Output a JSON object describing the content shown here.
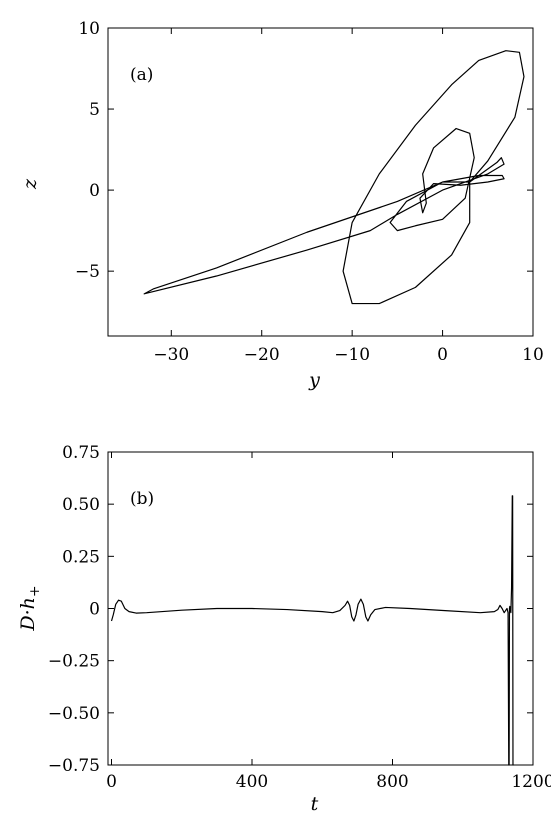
{
  "chart_data": [
    {
      "type": "line",
      "panel_label": "(a)",
      "xlabel": "y",
      "ylabel": "z",
      "xlim": [
        -37,
        10
      ],
      "ylim": [
        -9,
        10
      ],
      "xticks": [
        -30,
        -20,
        -10,
        0,
        10
      ],
      "xtick_labels": [
        "−30",
        "−20",
        "−10",
        "0",
        "10"
      ],
      "yticks": [
        -5,
        0,
        5,
        10
      ],
      "ytick_labels": [
        "−5",
        "0",
        "5",
        "10"
      ],
      "grid": false,
      "series": [
        {
          "points": [
            [
              3,
              0.5
            ],
            [
              6,
              1.7
            ],
            [
              6.5,
              2.0
            ],
            [
              6.8,
              1.6
            ],
            [
              5,
              1.0
            ],
            [
              0,
              0.0
            ],
            [
              -5,
              -1.5
            ],
            [
              -8,
              -2.5
            ],
            [
              -15,
              -3.7
            ],
            [
              -25,
              -5.3
            ],
            [
              -33,
              -6.4
            ],
            [
              -32,
              -6.1
            ],
            [
              -25,
              -4.8
            ],
            [
              -15,
              -2.6
            ],
            [
              -5,
              -0.7
            ],
            [
              0,
              0.5
            ],
            [
              4,
              0.9
            ],
            [
              6.6,
              0.9
            ],
            [
              6.8,
              0.7
            ],
            [
              5,
              0.5
            ],
            [
              2,
              0.3
            ],
            [
              -1,
              0.4
            ],
            [
              -2.5,
              -0.5
            ],
            [
              -2.2,
              -1.4
            ],
            [
              -1.8,
              -0.8
            ],
            [
              -2.2,
              1.0
            ],
            [
              -1,
              2.6
            ],
            [
              1.5,
              3.8
            ],
            [
              3,
              3.5
            ],
            [
              3.5,
              2.0
            ],
            [
              2.5,
              -0.5
            ],
            [
              0,
              -1.8
            ],
            [
              -3,
              -2.2
            ],
            [
              -5,
              -2.5
            ],
            [
              -5.8,
              -2.0
            ],
            [
              -4,
              -0.7
            ],
            [
              0,
              0.5
            ],
            [
              3,
              0.5
            ],
            [
              3,
              -2.0
            ],
            [
              1,
              -4.0
            ],
            [
              -3,
              -6.0
            ],
            [
              -7,
              -7.0
            ],
            [
              -10,
              -7.0
            ],
            [
              -11,
              -5.0
            ],
            [
              -10,
              -2.0
            ],
            [
              -7,
              1.0
            ],
            [
              -3,
              4.0
            ],
            [
              1,
              6.5
            ],
            [
              4,
              8.0
            ],
            [
              7,
              8.6
            ],
            [
              8.5,
              8.5
            ],
            [
              9,
              7.0
            ],
            [
              8,
              4.5
            ],
            [
              5,
              1.8
            ],
            [
              3,
              0.5
            ]
          ]
        }
      ]
    },
    {
      "type": "line",
      "panel_label": "(b)",
      "xlabel": "t",
      "ylabel": "D·h",
      "ylabel_sub": "+",
      "xlim": [
        -10,
        1200
      ],
      "ylim": [
        -0.75,
        0.75
      ],
      "xticks": [
        0,
        400,
        800,
        1200
      ],
      "xtick_labels": [
        "0",
        "400",
        "800",
        "1200"
      ],
      "yticks": [
        -0.75,
        -0.5,
        -0.25,
        0,
        0.25,
        0.5,
        0.75
      ],
      "ytick_labels": [
        "−0.75",
        "−0.50",
        "−0.25",
        "0",
        "0.25",
        "0.50",
        "0.75"
      ],
      "grid": false,
      "series": [
        {
          "points": [
            [
              0,
              -0.06
            ],
            [
              5,
              -0.03
            ],
            [
              12,
              0.02
            ],
            [
              20,
              0.04
            ],
            [
              28,
              0.035
            ],
            [
              38,
              0.0
            ],
            [
              50,
              -0.015
            ],
            [
              70,
              -0.022
            ],
            [
              100,
              -0.02
            ],
            [
              200,
              -0.008
            ],
            [
              300,
              0.0
            ],
            [
              400,
              0.0
            ],
            [
              500,
              -0.005
            ],
            [
              600,
              -0.015
            ],
            [
              630,
              -0.02
            ],
            [
              650,
              -0.01
            ],
            [
              665,
              0.015
            ],
            [
              672,
              0.035
            ],
            [
              678,
              0.015
            ],
            [
              684,
              -0.04
            ],
            [
              690,
              -0.06
            ],
            [
              696,
              -0.03
            ],
            [
              702,
              0.02
            ],
            [
              710,
              0.045
            ],
            [
              717,
              0.02
            ],
            [
              724,
              -0.04
            ],
            [
              730,
              -0.06
            ],
            [
              738,
              -0.03
            ],
            [
              750,
              -0.005
            ],
            [
              780,
              0.005
            ],
            [
              850,
              0.0
            ],
            [
              950,
              -0.01
            ],
            [
              1050,
              -0.02
            ],
            [
              1090,
              -0.015
            ],
            [
              1100,
              -0.005
            ],
            [
              1106,
              0.015
            ],
            [
              1112,
              0.0
            ],
            [
              1118,
              -0.02
            ],
            [
              1122,
              -0.01
            ],
            [
              1126,
              0.0
            ],
            [
              1129,
              -0.02
            ],
            [
              1131,
              -0.75
            ],
            [
              1132,
              -0.75
            ],
            [
              1133,
              0.0
            ],
            [
              1134,
              0.01
            ],
            [
              1137,
              -0.02
            ],
            [
              1139,
              0.1
            ],
            [
              1141,
              0.54
            ],
            [
              1142,
              0.54
            ],
            [
              1143,
              -0.75
            ],
            [
              1144,
              -0.75
            ]
          ]
        }
      ]
    }
  ]
}
